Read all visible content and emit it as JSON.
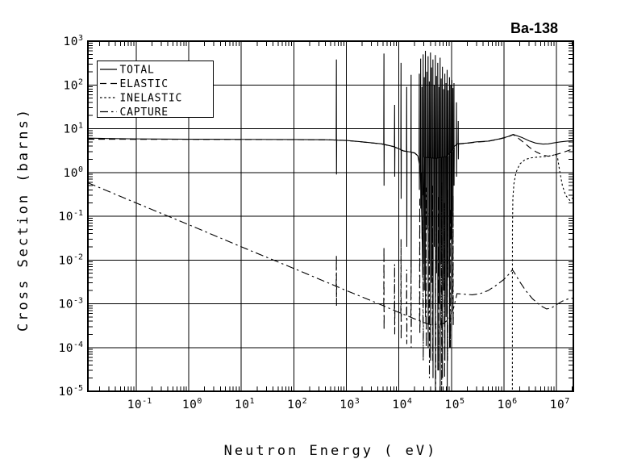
{
  "title": "Ba-138",
  "colors": {
    "foreground": "#000000",
    "background": "#ffffff"
  },
  "chart_data": {
    "type": "line",
    "title": "Ba-138",
    "xlabel": "Neutron Energy ( eV)",
    "ylabel": "Cross Section (barns)",
    "x_scale": "log",
    "y_scale": "log",
    "xlim": [
      0.012,
      21000000
    ],
    "ylim": [
      1e-05,
      1000
    ],
    "grid": true,
    "x_tick_exponents": [
      -1,
      0,
      1,
      2,
      3,
      4,
      5,
      6,
      7
    ],
    "y_tick_exponents": [
      3,
      2,
      1,
      0,
      -1,
      -2,
      -3,
      -4,
      -5
    ],
    "legend": {
      "position": "top-left",
      "entries": [
        {
          "label": "TOTAL",
          "style": "solid"
        },
        {
          "label": "ELASTIC",
          "style": "long-dash"
        },
        {
          "label": "INELASTIC",
          "style": "fine-dash"
        },
        {
          "label": "CAPTURE",
          "style": "dash-dot"
        }
      ]
    },
    "series": [
      {
        "name": "TOTAL",
        "style": "solid",
        "segments": [
          [
            [
              0.012,
              6.1
            ],
            [
              0.03,
              5.95
            ],
            [
              0.1,
              5.85
            ],
            [
              1,
              5.75
            ],
            [
              10,
              5.7
            ],
            [
              100,
              5.65
            ],
            [
              400,
              5.6
            ],
            [
              620,
              5.5
            ],
            [
              700,
              5.45
            ],
            [
              1000,
              5.4
            ],
            [
              2000,
              5.0
            ],
            [
              4700,
              4.5
            ],
            [
              8000,
              3.9
            ],
            [
              12400,
              3.1
            ],
            [
              16000,
              2.95
            ],
            [
              20000,
              2.8
            ],
            [
              23000,
              2.4
            ],
            [
              25500,
              1.2
            ],
            [
              27500,
              0.08
            ],
            [
              28500,
              0.004
            ],
            [
              29500,
              0.25
            ],
            [
              31000,
              2.2
            ],
            [
              35000,
              2.2
            ],
            [
              50000,
              2.1
            ],
            [
              80000,
              2.3
            ],
            [
              100000,
              3.0
            ],
            [
              115000,
              4.0
            ],
            [
              130000,
              4.5
            ],
            [
              200000,
              4.7
            ],
            [
              300000,
              5.0
            ],
            [
              500000,
              5.2
            ],
            [
              800000,
              5.8
            ],
            [
              1200000,
              6.6
            ],
            [
              1500000,
              7.4
            ],
            [
              2200000,
              6.3
            ],
            [
              3000000,
              5.3
            ],
            [
              4000000,
              4.7
            ],
            [
              5500000,
              4.45
            ],
            [
              7000000,
              4.5
            ],
            [
              9000000,
              4.75
            ],
            [
              12000000,
              5.0
            ],
            [
              16000000,
              5.2
            ],
            [
              21000000,
              5.35
            ]
          ]
        ],
        "spikes": [
          [
            647,
            380,
            0.9,
            5.45
          ],
          [
            5200,
            520,
            0.5,
            4.4
          ],
          [
            8300,
            35,
            0.8,
            3.85
          ],
          [
            11000,
            320,
            0.25,
            3.2
          ],
          [
            14100,
            90,
            0.02,
            3.0
          ],
          [
            17100,
            170,
            0.005,
            2.9
          ],
          [
            24500,
            180,
            0.4,
            2.6
          ],
          [
            26000,
            400,
            0.15,
            1.0
          ],
          [
            27500,
            90,
            0.03,
            0.1
          ],
          [
            29000,
            500,
            0.008,
            0.3
          ],
          [
            30500,
            150,
            0.002,
            2.2
          ],
          [
            32000,
            600,
            0.0005,
            2.2
          ],
          [
            34000,
            200,
            0.05,
            2.2
          ],
          [
            36000,
            450,
            0.0001,
            2.2
          ],
          [
            38000,
            120,
            0.01,
            2.2
          ],
          [
            40000,
            550,
            5e-05,
            2.2
          ],
          [
            42000,
            250,
            0.003,
            2.15
          ],
          [
            44500,
            380,
            2e-05,
            2.1
          ],
          [
            47000,
            100,
            0.02,
            2.1
          ],
          [
            49500,
            480,
            1e-05,
            2.1
          ],
          [
            52000,
            160,
            0.005,
            2.1
          ],
          [
            55000,
            320,
            3e-05,
            2.1
          ],
          [
            58000,
            90,
            0.001,
            2.1
          ],
          [
            61000,
            420,
            1e-05,
            2.15
          ],
          [
            64000,
            140,
            0.008,
            2.2
          ],
          [
            67500,
            260,
            2e-05,
            2.2
          ],
          [
            71000,
            80,
            0.002,
            2.25
          ],
          [
            75000,
            180,
            5e-05,
            2.3
          ],
          [
            79000,
            110,
            0.0005,
            2.3
          ],
          [
            83000,
            220,
            1e-05,
            2.3
          ],
          [
            87000,
            75,
            0.004,
            2.4
          ],
          [
            92000,
            150,
            0.0001,
            2.6
          ],
          [
            97000,
            100,
            0.03,
            2.8
          ],
          [
            102000,
            130,
            0.001,
            3.0
          ],
          [
            107000,
            85,
            0.1,
            3.3
          ],
          [
            112000,
            110,
            0.5,
            3.7
          ],
          [
            125000,
            40,
            0.8,
            4.4
          ],
          [
            135000,
            15,
            2.0,
            4.5
          ]
        ]
      },
      {
        "name": "ELASTIC",
        "style": "long-dash",
        "segments": [
          [
            [
              0.012,
              5.75
            ],
            [
              0.1,
              5.72
            ],
            [
              1,
              5.7
            ],
            [
              10,
              5.66
            ],
            [
              100,
              5.62
            ],
            [
              500,
              5.55
            ],
            [
              1000,
              5.38
            ],
            [
              2000,
              4.98
            ],
            [
              4700,
              4.48
            ],
            [
              8000,
              3.88
            ],
            [
              12400,
              3.08
            ],
            [
              16000,
              2.93
            ],
            [
              20000,
              2.78
            ],
            [
              23000,
              2.38
            ]
          ],
          [
            [
              130000,
              4.45
            ],
            [
              200000,
              4.65
            ],
            [
              300000,
              4.95
            ],
            [
              500000,
              5.15
            ],
            [
              800000,
              5.75
            ],
            [
              1200000,
              6.5
            ],
            [
              1500000,
              7.3
            ],
            [
              1900000,
              6.0
            ],
            [
              2400000,
              4.8
            ],
            [
              3200000,
              3.6
            ],
            [
              4200000,
              2.9
            ],
            [
              5500000,
              2.5
            ],
            [
              7000000,
              2.35
            ],
            [
              9000000,
              2.5
            ],
            [
              12000000,
              2.75
            ],
            [
              16000000,
              3.1
            ],
            [
              21000000,
              3.5
            ]
          ]
        ],
        "spikes": []
      },
      {
        "name": "INELASTIC",
        "style": "fine-dash",
        "segments": [
          [
            [
              1450000,
              1.1e-05
            ],
            [
              1455000,
              0.05
            ],
            [
              1480000,
              0.25
            ],
            [
              1550000,
              0.55
            ],
            [
              1700000,
              1.0
            ],
            [
              2000000,
              1.55
            ],
            [
              2500000,
              1.95
            ],
            [
              3200000,
              2.15
            ],
            [
              4500000,
              2.25
            ],
            [
              6000000,
              2.3
            ],
            [
              8000000,
              2.4
            ],
            [
              9800000,
              2.6
            ],
            [
              10500000,
              2.2
            ],
            [
              11500000,
              1.1
            ],
            [
              13000000,
              0.5
            ],
            [
              15000000,
              0.3
            ],
            [
              18000000,
              0.23
            ],
            [
              21000000,
              0.27
            ]
          ]
        ],
        "spikes": []
      },
      {
        "name": "CAPTURE",
        "style": "dash-dot",
        "segments": [
          [
            [
              0.012,
              0.58
            ],
            [
              0.0253,
              0.4
            ],
            [
              0.1,
              0.2
            ],
            [
              1,
              0.064
            ],
            [
              10,
              0.02
            ],
            [
              100,
              0.0064
            ],
            [
              600,
              0.0026
            ],
            [
              1000,
              0.002
            ],
            [
              3000,
              0.00117
            ],
            [
              5100,
              0.0009
            ],
            [
              8200,
              0.0007
            ],
            [
              10800,
              0.00061
            ],
            [
              14000,
              0.00054
            ],
            [
              20000,
              0.00045
            ],
            [
              23000,
              0.00042
            ],
            [
              40000,
              0.00033
            ],
            [
              70000,
              0.00035
            ],
            [
              90000,
              0.00045
            ],
            [
              110000,
              0.0008
            ],
            [
              128000,
              0.0017
            ],
            [
              180000,
              0.00165
            ],
            [
              250000,
              0.0016
            ],
            [
              350000,
              0.0017
            ],
            [
              500000,
              0.002
            ],
            [
              700000,
              0.0026
            ],
            [
              1000000,
              0.0036
            ],
            [
              1300000,
              0.005
            ],
            [
              1450000,
              0.006
            ],
            [
              1600000,
              0.005
            ],
            [
              2000000,
              0.0032
            ],
            [
              2600000,
              0.002
            ],
            [
              3500000,
              0.0013
            ],
            [
              5000000,
              0.0009
            ],
            [
              6500000,
              0.00076
            ],
            [
              8000000,
              0.0008
            ],
            [
              10000000,
              0.00095
            ],
            [
              13000000,
              0.00115
            ],
            [
              17000000,
              0.0013
            ],
            [
              21000000,
              0.00135
            ]
          ]
        ],
        "spikes": [
          [
            647,
            0.013,
            0.0009,
            0.0024
          ],
          [
            5200,
            0.02,
            0.00025,
            0.0009
          ],
          [
            8300,
            0.008,
            0.0002,
            0.0007
          ],
          [
            11000,
            0.03,
            0.00015,
            0.0006
          ],
          [
            14100,
            0.006,
            0.00012,
            0.00054
          ],
          [
            17100,
            0.01,
            0.0001,
            0.0005
          ],
          [
            25000,
            0.25,
            0.0002,
            0.0004
          ],
          [
            29000,
            0.08,
            5e-05,
            0.00037
          ],
          [
            33000,
            0.45,
            0.0001,
            0.00035
          ],
          [
            38000,
            0.12,
            2e-05,
            0.00033
          ],
          [
            44000,
            0.5,
            5e-05,
            0.00032
          ],
          [
            50000,
            0.1,
            1e-05,
            0.00031
          ],
          [
            57000,
            0.3,
            3e-05,
            0.00031
          ],
          [
            65000,
            0.6,
            1e-05,
            0.00032
          ],
          [
            74000,
            0.2,
            2e-05,
            0.00034
          ],
          [
            84000,
            0.4,
            5e-05,
            0.00038
          ],
          [
            95000,
            0.15,
            0.0001,
            0.00048
          ],
          [
            108000,
            0.3,
            0.0003,
            0.0007
          ]
        ]
      }
    ]
  }
}
